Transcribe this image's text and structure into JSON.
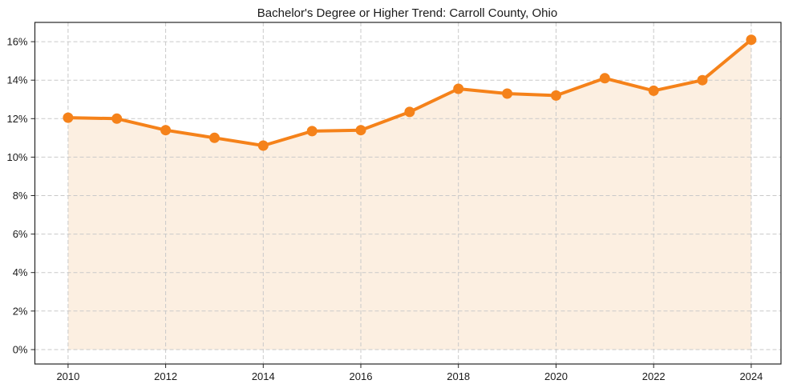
{
  "title": "Bachelor's Degree or Higher Trend: Carroll County, Ohio",
  "chart_data": {
    "type": "area",
    "title": "Bachelor's Degree or Higher Trend: Carroll County, Ohio",
    "x": [
      2010,
      2011,
      2012,
      2013,
      2014,
      2015,
      2016,
      2017,
      2018,
      2019,
      2020,
      2021,
      2022,
      2023,
      2024
    ],
    "series": [
      {
        "name": "Bachelor's Degree or Higher (%)",
        "values": [
          12.05,
          12.0,
          11.4,
          11.0,
          10.6,
          11.35,
          11.4,
          12.35,
          13.55,
          13.3,
          13.2,
          14.1,
          13.45,
          14.0,
          16.1
        ]
      }
    ],
    "xlabel": "",
    "ylabel": "",
    "x_ticks": [
      2010,
      2012,
      2014,
      2016,
      2018,
      2020,
      2022,
      2024
    ],
    "x_tick_labels": [
      "2010",
      "2012",
      "2014",
      "2016",
      "2018",
      "2020",
      "2022",
      "2024"
    ],
    "y_ticks": [
      0,
      2,
      4,
      6,
      8,
      10,
      12,
      14,
      16
    ],
    "y_tick_labels": [
      "0%",
      "2%",
      "4%",
      "6%",
      "8%",
      "10%",
      "12%",
      "14%",
      "16%"
    ],
    "xlim": [
      2009.32,
      2024.61
    ],
    "ylim": [
      -0.75,
      17.0
    ],
    "area_baseline": 0,
    "grid": true,
    "legend": false,
    "colors": {
      "line": "#f5821a",
      "marker": "#f5821a",
      "fill": "#fcefe1",
      "grid": "#c9c9c9",
      "axis": "#262626",
      "text": "#1a1a1a",
      "background": "#ffffff"
    },
    "marker_radius": 6.5,
    "line_width": 4
  }
}
